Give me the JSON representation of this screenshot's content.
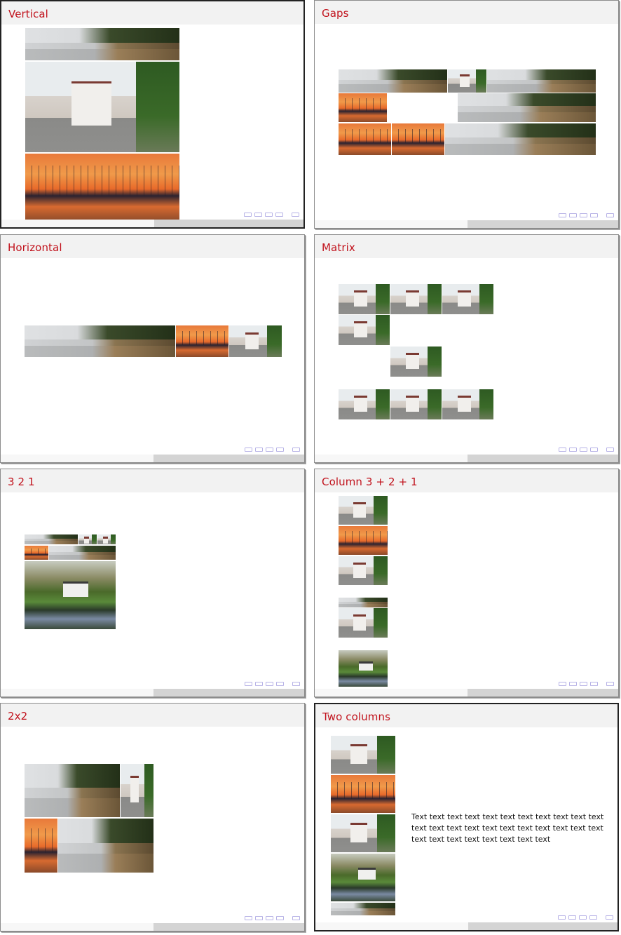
{
  "slides": [
    {
      "title": "Vertical"
    },
    {
      "title": "Gaps"
    },
    {
      "title": "Horizontal"
    },
    {
      "title": "Matrix"
    },
    {
      "title": "3 2 1"
    },
    {
      "title": "Column 3 + 2 + 1"
    },
    {
      "title": "2x2"
    },
    {
      "title": "Two columns",
      "text": "Text text text text text text text text text text text text text text text text text text text text text text text text text text text text text text"
    }
  ],
  "photos": {
    "beach": "beach-photo",
    "house": "house-photo",
    "sunset": "marina-sunset-photo",
    "cottage": "cottage-photo"
  }
}
